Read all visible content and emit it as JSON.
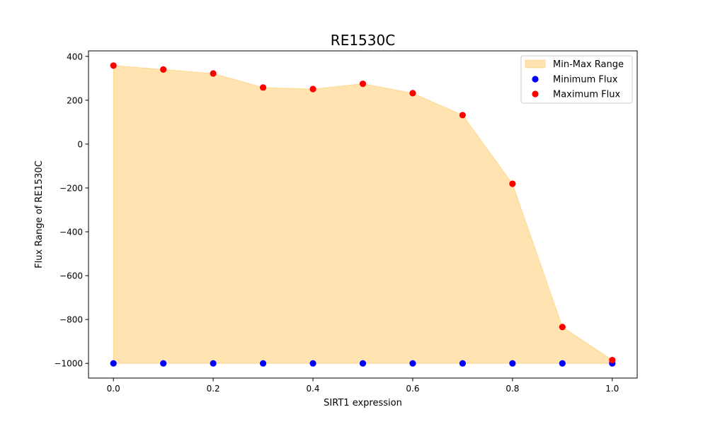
{
  "chart_data": {
    "type": "area",
    "title": "RE1530C",
    "xlabel": "SIRT1 expression",
    "ylabel": "Flux Range of RE1530C",
    "x": [
      0.0,
      0.1,
      0.2,
      0.3,
      0.4,
      0.5,
      0.6,
      0.7,
      0.8,
      0.9,
      1.0
    ],
    "series": [
      {
        "name": "Minimum Flux",
        "kind": "scatter",
        "color": "#0000ff",
        "values": [
          -1000,
          -1000,
          -1000,
          -1000,
          -1000,
          -1000,
          -1000,
          -1000,
          -1000,
          -1000,
          -1000
        ]
      },
      {
        "name": "Maximum Flux",
        "kind": "scatter",
        "color": "#ff0000",
        "values": [
          358,
          340,
          322,
          258,
          251,
          275,
          232,
          132,
          -181,
          -834,
          -985
        ]
      }
    ],
    "fill": {
      "name": "Min-Max Range",
      "color": "#ffa500",
      "alpha": 0.3
    },
    "xlim": [
      -0.05,
      1.05
    ],
    "ylim": [
      -1067,
      425
    ],
    "xticks": [
      "0.0",
      "0.2",
      "0.4",
      "0.6",
      "0.8",
      "1.0"
    ],
    "xtick_values": [
      0.0,
      0.2,
      0.4,
      0.6,
      0.8,
      1.0
    ],
    "yticks": [
      "400",
      "200",
      "0",
      "−200",
      "−400",
      "−600",
      "−800",
      "−1000"
    ],
    "ytick_values": [
      400,
      200,
      0,
      -200,
      -400,
      -600,
      -800,
      -1000
    ],
    "legend_position": "top-right",
    "grid": false
  }
}
